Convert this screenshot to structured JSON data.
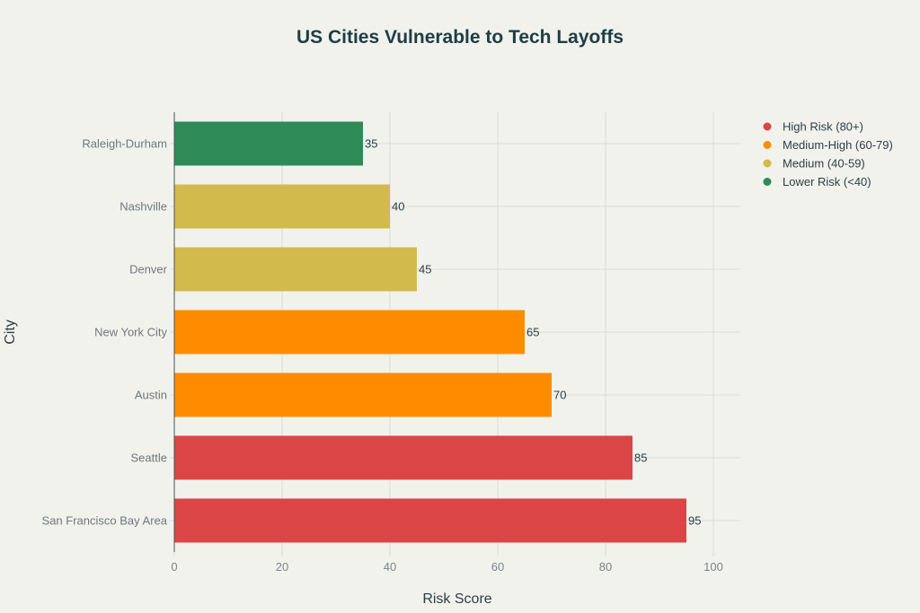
{
  "chart_data": {
    "type": "bar",
    "orientation": "horizontal",
    "title": "US Cities Vulnerable to Tech Layoffs",
    "xlabel": "Risk Score",
    "ylabel": "City",
    "xlim": [
      0,
      105
    ],
    "xticks": [
      0,
      20,
      40,
      60,
      80,
      100
    ],
    "grid": true,
    "legend_position": "top-right",
    "categories": [
      "Raleigh-Durham",
      "Nashville",
      "Denver",
      "New York City",
      "Austin",
      "Seattle",
      "San Francisco Bay Area"
    ],
    "values": [
      35,
      40,
      45,
      65,
      70,
      85,
      95
    ],
    "groups": [
      "Lower Risk (<40)",
      "Medium (40-59)",
      "Medium (40-59)",
      "Medium-High (60-79)",
      "Medium-High (60-79)",
      "High Risk (80+)",
      "High Risk (80+)"
    ],
    "legend": [
      {
        "label": "High Risk (80+)",
        "color": "#db4545"
      },
      {
        "label": "Medium-High (60-79)",
        "color": "#ff8c00"
      },
      {
        "label": "Medium (40-59)",
        "color": "#d2ba4c"
      },
      {
        "label": "Lower Risk (<40)",
        "color": "#2e8b57"
      }
    ]
  }
}
